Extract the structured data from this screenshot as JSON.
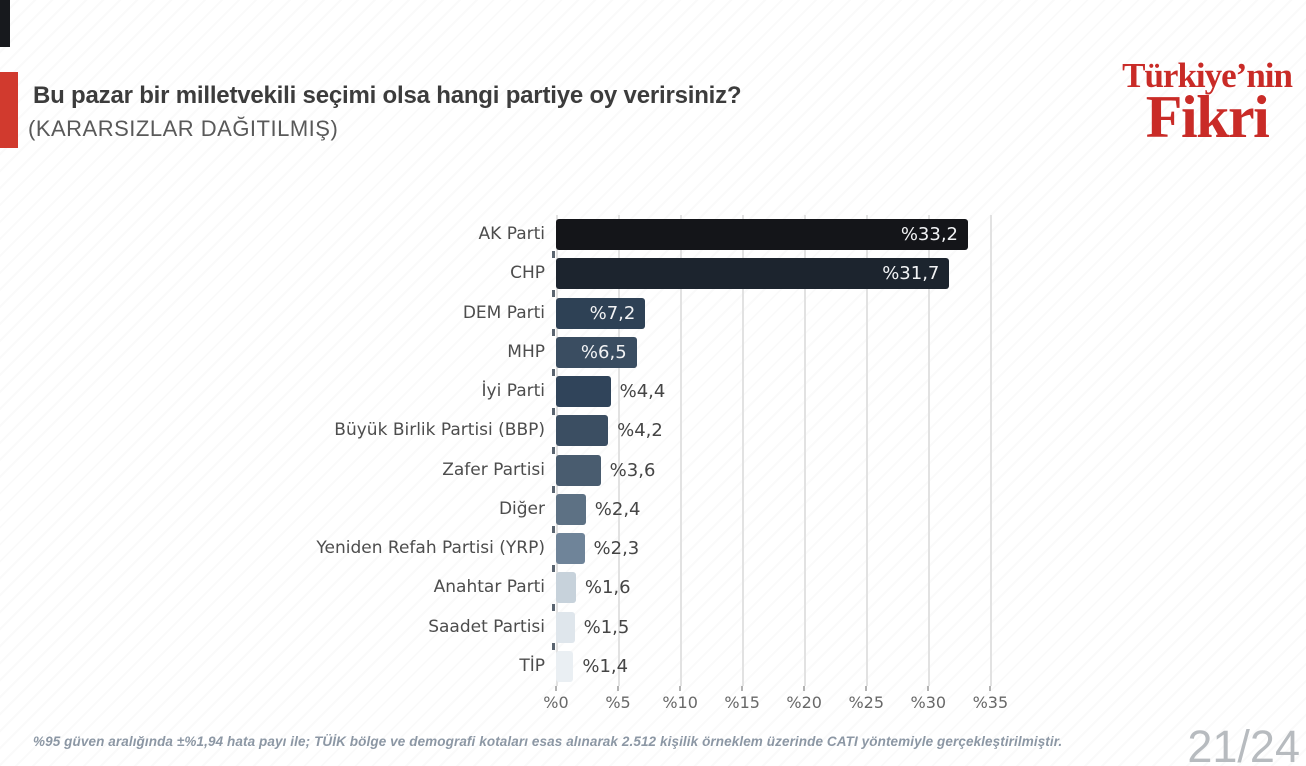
{
  "header": {
    "title": "Bu pazar bir milletvekili seçimi olsa hangi partiye oy verirsiniz?",
    "subtitle": "(KARARSIZLAR DAĞITILMIŞ)",
    "accent_color": "#d13a2e"
  },
  "logo": {
    "line1": "Türkiye’nin",
    "line2": "Fikri",
    "color": "#c92b27"
  },
  "chart_data": {
    "type": "bar",
    "orientation": "horizontal",
    "categories": [
      "AK Parti",
      "CHP",
      "DEM Parti",
      "MHP",
      "İyi Parti",
      "Büyük Birlik Partisi (BBP)",
      "Zafer Partisi",
      "Diğer",
      "Yeniden Refah Partisi (YRP)",
      "Anahtar Parti",
      "Saadet Partisi",
      "TİP"
    ],
    "values": [
      33.2,
      31.7,
      7.2,
      6.5,
      4.4,
      4.2,
      3.6,
      2.4,
      2.3,
      1.6,
      1.5,
      1.4
    ],
    "value_labels": [
      "%33,2",
      "%31,7",
      "%7,2",
      "%6,5",
      "%4,4",
      "%4,2",
      "%3,6",
      "%2,4",
      "%2,3",
      "%1,6",
      "%1,5",
      "%1,4"
    ],
    "bar_colors": [
      "#141519",
      "#1c242e",
      "#2e4155",
      "#3a4d61",
      "#30445a",
      "#3b4e62",
      "#495c6f",
      "#5d7184",
      "#6f8499",
      "#c7d2db",
      "#dfe6ec",
      "#eaeff3"
    ],
    "x_tick_labels": [
      "%0",
      "%5",
      "%10",
      "%15",
      "%20",
      "%25",
      "%30",
      "%35"
    ],
    "x_tick_values": [
      0,
      5,
      10,
      15,
      20,
      25,
      30,
      35
    ],
    "xlim": [
      0,
      39
    ],
    "grid": true,
    "legend": false,
    "value_label_inside_min": 6
  },
  "footer": {
    "note": "%95 güven aralığında ±%1,94 hata payı ile; TÜİK bölge ve demografi kotaları esas alınarak 2.512 kişilik örneklem üzerinde CATI yöntemiyle gerçekleştirilmiştir.",
    "page": "21/24"
  }
}
